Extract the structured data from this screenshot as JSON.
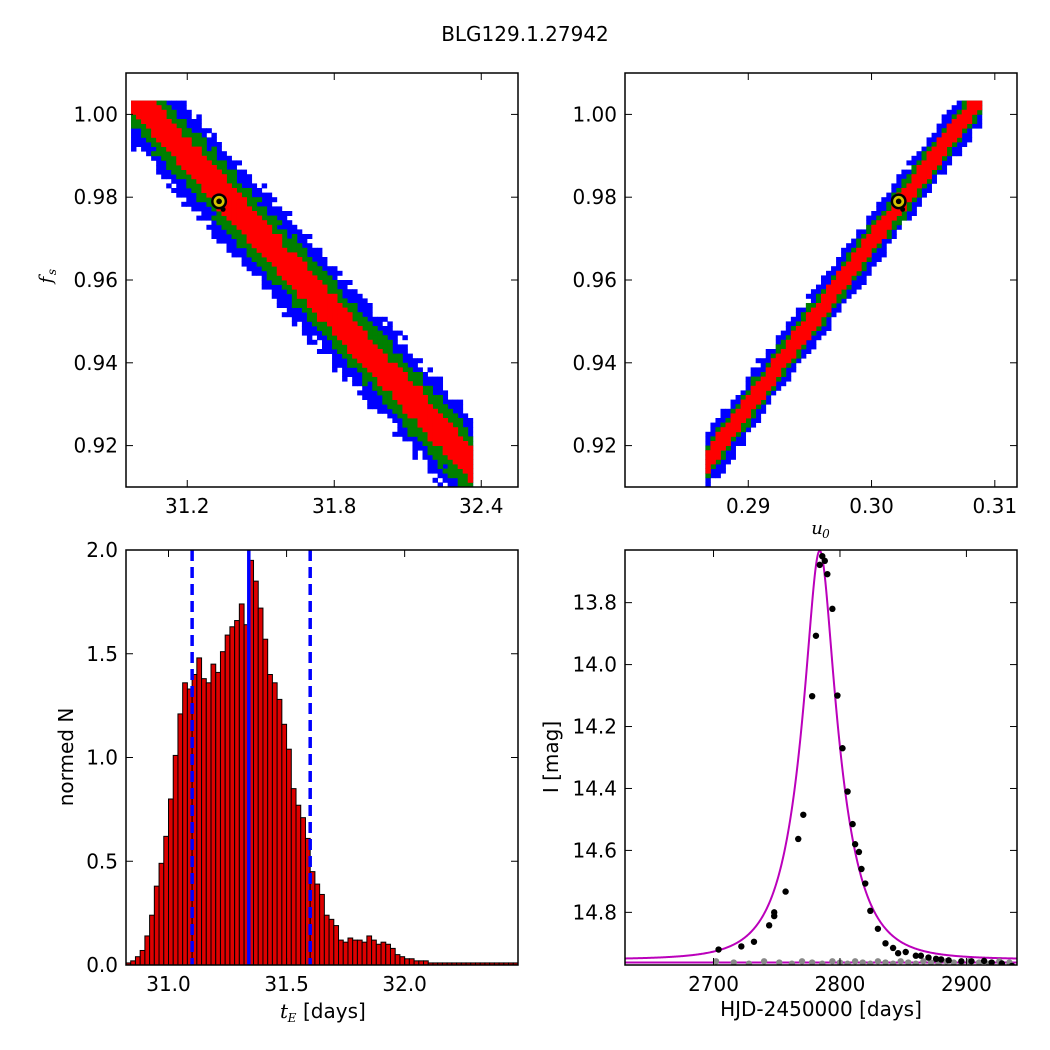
{
  "figure": {
    "title": "BLG129.1.27942"
  },
  "chart_data": [
    {
      "type": "heatmap",
      "panel": "top-left",
      "xlabel": "",
      "ylabel": "f_s",
      "xlim": [
        30.95,
        32.55
      ],
      "ylim": [
        0.91,
        1.01
      ],
      "xticks": [
        "31.2",
        "31.8",
        "32.4"
      ],
      "yticks": [
        "0.92",
        "0.94",
        "0.96",
        "0.98",
        "1.00"
      ],
      "levels": [
        "blue",
        "green",
        "red"
      ],
      "colors": {
        "blue": "#0000ff",
        "green": "#007f00",
        "red": "#ff0000"
      },
      "band": {
        "from": [
          31.0,
          1.003
        ],
        "to": [
          32.35,
          0.916
        ],
        "widths_y": [
          0.012,
          0.008,
          0.0045
        ]
      },
      "best_fit": {
        "x": 31.33,
        "y": 0.979
      }
    },
    {
      "type": "heatmap",
      "panel": "top-right",
      "xlabel": "u_0",
      "ylabel": "",
      "xlim": [
        0.28,
        0.3118
      ],
      "ylim": [
        0.91,
        1.01
      ],
      "xticks": [
        "0.29",
        "0.30",
        "0.31"
      ],
      "yticks": [
        "0.92",
        "0.94",
        "0.96",
        "0.98",
        "1.00"
      ],
      "levels": [
        "blue",
        "green",
        "red"
      ],
      "colors": {
        "blue": "#0000ff",
        "green": "#007f00",
        "red": "#ff0000"
      },
      "band": {
        "from": [
          0.2868,
          0.917
        ],
        "to": [
          0.3085,
          1.003
        ],
        "widths_y": [
          0.007,
          0.0045,
          0.0028
        ]
      },
      "best_fit": {
        "x": 0.3022,
        "y": 0.979
      }
    },
    {
      "type": "bar",
      "panel": "bottom-left",
      "xlabel": "[days]",
      "xlabel_math": "t_E",
      "ylabel": "normed N",
      "xlim": [
        30.82,
        32.48
      ],
      "ylim": [
        0,
        2
      ],
      "xticks": [
        "31.0",
        "31.5",
        "32.0"
      ],
      "yticks": [
        "0.0",
        "0.5",
        "1.0",
        "1.5",
        "2.0"
      ],
      "bin_start": 30.82,
      "bin_width": 0.02,
      "values": [
        0.01,
        0.02,
        0.04,
        0.07,
        0.14,
        0.24,
        0.38,
        0.49,
        0.62,
        0.8,
        1.01,
        1.21,
        1.36,
        1.33,
        1.4,
        1.48,
        1.38,
        1.36,
        1.45,
        1.41,
        1.51,
        1.59,
        1.63,
        1.66,
        1.74,
        1.64,
        1.95,
        1.85,
        1.72,
        1.57,
        1.4,
        1.36,
        1.28,
        1.16,
        1.04,
        0.85,
        0.77,
        0.71,
        0.61,
        0.45,
        0.39,
        0.34,
        0.24,
        0.22,
        0.19,
        0.12,
        0.11,
        0.13,
        0.12,
        0.12,
        0.11,
        0.14,
        0.12,
        0.1,
        0.11,
        0.1,
        0.08,
        0.05,
        0.04,
        0.03,
        0.03,
        0.02,
        0.02,
        0.02,
        0.01,
        0.01,
        0.01,
        0.01,
        0.01,
        0.01,
        0.01,
        0.01,
        0.01,
        0.01,
        0.01,
        0.01,
        0.01,
        0.01,
        0.01,
        0.01,
        0.01,
        0.01,
        0.01
      ],
      "median": 31.34,
      "interval": [
        31.1,
        31.6
      ],
      "bar_color": "#dd0000",
      "line_color": "#0000ff"
    },
    {
      "type": "line",
      "panel": "bottom-right",
      "xlabel": "HJD-2450000 [days]",
      "ylabel": "I [mag]",
      "xlim": [
        2630,
        2940
      ],
      "ylim": [
        14.97,
        13.63
      ],
      "y_inverted": true,
      "xticks": [
        "2700",
        "2800",
        "2900"
      ],
      "yticks": [
        "13.8",
        "14.0",
        "14.2",
        "14.4",
        "14.6",
        "14.8"
      ],
      "model": {
        "t0": 2784,
        "tE": 31.33,
        "u0": 0.302,
        "fs": 0.979,
        "I_base": 14.952
      },
      "baseline_model_mag": 14.962,
      "data_points": [
        [
          2704,
          14.92
        ],
        [
          2722,
          14.91
        ],
        [
          2732,
          14.895
        ],
        [
          2744,
          14.842
        ],
        [
          2748,
          14.812
        ],
        [
          2748,
          14.8
        ],
        [
          2757,
          14.733
        ],
        [
          2767,
          14.563
        ],
        [
          2771,
          14.485
        ],
        [
          2778,
          14.102
        ],
        [
          2781,
          13.907
        ],
        [
          2784,
          13.678
        ],
        [
          2786,
          13.65
        ],
        [
          2788,
          13.665
        ],
        [
          2790,
          13.708
        ],
        [
          2794,
          13.82
        ],
        [
          2798,
          14.1
        ],
        [
          2802,
          14.27
        ],
        [
          2806,
          14.41
        ],
        [
          2810,
          14.515
        ],
        [
          2812,
          14.58
        ],
        [
          2815,
          14.605
        ],
        [
          2817,
          14.66
        ],
        [
          2820,
          14.707
        ],
        [
          2824,
          14.795
        ],
        [
          2830,
          14.853
        ],
        [
          2836,
          14.9
        ],
        [
          2842,
          14.915
        ],
        [
          2846,
          14.932
        ],
        [
          2852,
          14.928
        ],
        [
          2860,
          14.94
        ],
        [
          2864,
          14.94
        ],
        [
          2870,
          14.946
        ],
        [
          2876,
          14.95
        ],
        [
          2880,
          14.952
        ],
        [
          2886,
          14.955
        ],
        [
          2896,
          14.958
        ],
        [
          2904,
          14.958
        ],
        [
          2914,
          14.957
        ],
        [
          2920,
          14.962
        ],
        [
          2928,
          14.965
        ],
        [
          2936,
          14.973
        ]
      ],
      "residual_points_x": [
        2702,
        2716,
        2728,
        2740,
        2752,
        2762,
        2770,
        2778,
        2786,
        2794,
        2800,
        2806,
        2812,
        2818,
        2824,
        2830,
        2836,
        2842,
        2848,
        2854,
        2860,
        2866,
        2872,
        2878,
        2884,
        2890,
        2896,
        2902,
        2910,
        2918,
        2926,
        2934
      ],
      "model_color": "#bb00bb",
      "point_color": "#000000",
      "residual_color": "#888888"
    }
  ]
}
